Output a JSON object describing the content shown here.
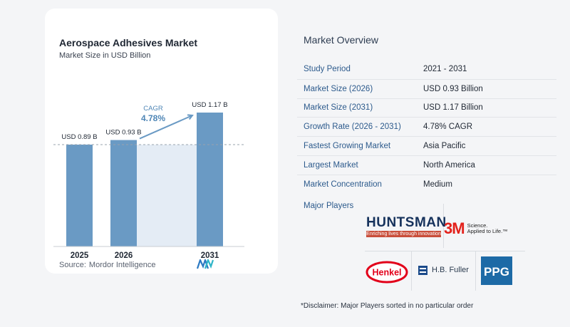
{
  "left_card": {
    "title": "Aerospace Adhesives Market",
    "subtitle": "Market Size in USD Billion",
    "source_label": "Source:",
    "source_name": "Mordor Intelligence"
  },
  "chart_data": {
    "type": "bar",
    "title": "Aerospace Adhesives Market",
    "subtitle": "Market Size in USD Billion",
    "categories": [
      "2025",
      "2026",
      "2031"
    ],
    "values": [
      0.89,
      0.93,
      1.17
    ],
    "value_labels": [
      "USD 0.89 B",
      "USD 0.93 B",
      "USD 1.17 B"
    ],
    "cagr_label": "CAGR",
    "cagr_value": "4.78%",
    "xlabel": "",
    "ylabel": "",
    "ylim": [
      0,
      1.25
    ],
    "colors": {
      "bar": "#6a9ac4",
      "bar_dark": "#5582ad",
      "highlight": "#e4ecf5",
      "arrow": "#6a9ac4",
      "cagr_text": "#4f86b6"
    }
  },
  "overview": {
    "title": "Market Overview",
    "rows": [
      {
        "label": "Study Period",
        "value": "2021 - 2031"
      },
      {
        "label": "Market Size (2026)",
        "value": "USD 0.93 Billion"
      },
      {
        "label": "Market Size (2031)",
        "value": "USD 1.17 Billion"
      },
      {
        "label": "Growth Rate (2026 - 2031)",
        "value": "4.78% CAGR"
      },
      {
        "label": "Fastest Growing Market",
        "value": "Asia Pacific"
      },
      {
        "label": "Largest Market",
        "value": "North America"
      },
      {
        "label": "Market Concentration",
        "value": "Medium"
      }
    ],
    "players_label": "Major Players",
    "players": {
      "huntsman": "HUNTSMAN",
      "huntsman_tag": "Enriching lives through innovation",
      "threem": "3M",
      "threem_tag_1": "Science.",
      "threem_tag_2": "Applied to Life.™",
      "henkel": "Henkel",
      "hbfuller": "H.B. Fuller",
      "ppg": "PPG"
    },
    "disclaimer": "*Disclaimer: Major Players sorted in no particular order"
  }
}
